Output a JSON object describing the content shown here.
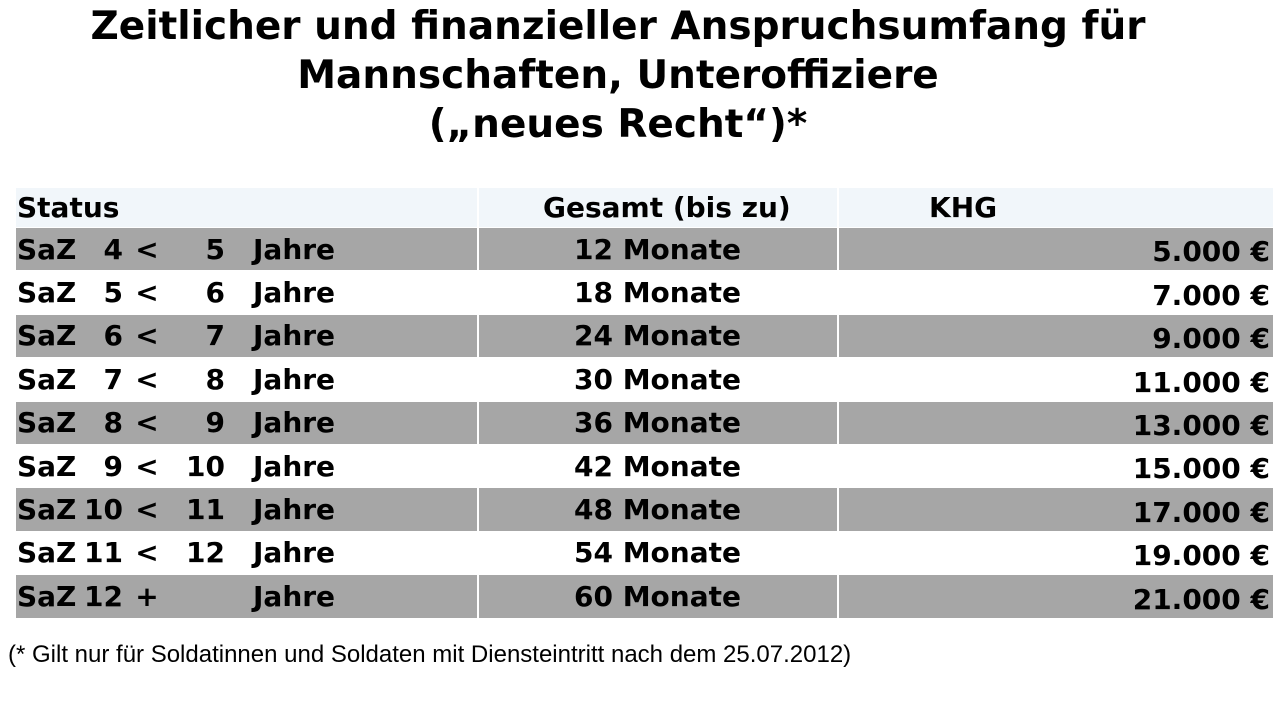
{
  "title": {
    "line1": "Zeitlicher und finanzieller Anspruchsumfang für",
    "line2": "Mannschaften, Unteroffiziere",
    "line3": "(„neues Recht“)*"
  },
  "table": {
    "headers": {
      "status": "Status",
      "gesamt": "Gesamt (bis zu)",
      "khg": "KHG"
    },
    "rows": [
      {
        "saz": "SaZ",
        "from": "4",
        "op": "<",
        "to": "5",
        "unit": "Jahre",
        "gesamt": "12 Monate",
        "khg": "5.000 €"
      },
      {
        "saz": "SaZ",
        "from": "5",
        "op": "<",
        "to": "6",
        "unit": "Jahre",
        "gesamt": "18 Monate",
        "khg": "7.000 €"
      },
      {
        "saz": "SaZ",
        "from": "6",
        "op": "<",
        "to": "7",
        "unit": "Jahre",
        "gesamt": "24 Monate",
        "khg": "9.000 €"
      },
      {
        "saz": "SaZ",
        "from": "7",
        "op": "<",
        "to": "8",
        "unit": "Jahre",
        "gesamt": "30 Monate",
        "khg": "11.000 €"
      },
      {
        "saz": "SaZ",
        "from": "8",
        "op": "<",
        "to": "9",
        "unit": "Jahre",
        "gesamt": "36 Monate",
        "khg": "13.000 €"
      },
      {
        "saz": "SaZ",
        "from": "9",
        "op": "<",
        "to": "10",
        "unit": "Jahre",
        "gesamt": "42 Monate",
        "khg": "15.000 €"
      },
      {
        "saz": "SaZ",
        "from": "10",
        "op": "<",
        "to": "11",
        "unit": "Jahre",
        "gesamt": "48 Monate",
        "khg": "17.000 €"
      },
      {
        "saz": "SaZ",
        "from": "11",
        "op": "<",
        "to": "12",
        "unit": "Jahre",
        "gesamt": "54 Monate",
        "khg": "19.000 €"
      },
      {
        "saz": "SaZ",
        "from": "12",
        "op": "+",
        "to": "",
        "unit": "Jahre",
        "gesamt": "60 Monate",
        "khg": "21.000 €"
      }
    ]
  },
  "footnote": "(* Gilt nur für Soldatinnen und Soldaten mit Diensteintritt nach dem 25.07.2012)",
  "colors": {
    "header_background": "#f1f6fa",
    "shaded_row": "#a6a6a6",
    "plain_row": "#ffffff"
  }
}
